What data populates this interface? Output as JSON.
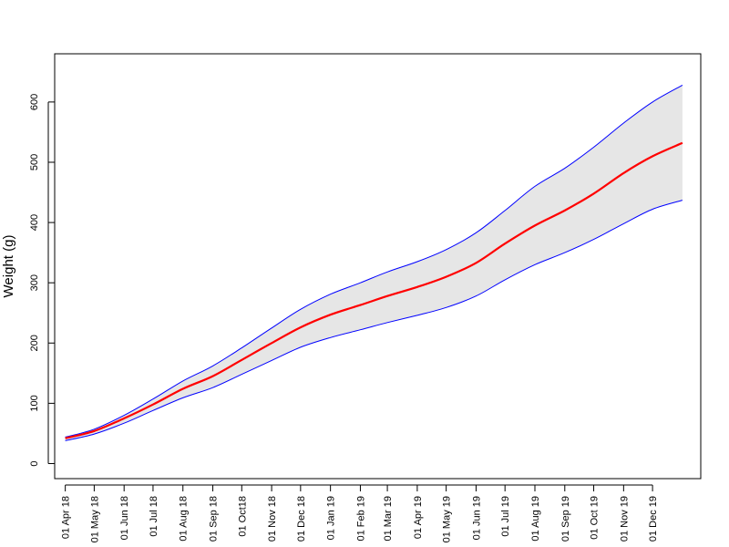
{
  "chart_data": {
    "type": "line",
    "title": "",
    "xlabel": "",
    "ylabel": "Weight (g)",
    "grid": false,
    "legend": "none",
    "ylim": [
      -25,
      680
    ],
    "xlim": [
      "2018-03-21",
      "2020-01-20"
    ],
    "x_ticks": [
      {
        "date": "2018-04-01",
        "label": "01 Apr 18"
      },
      {
        "date": "2018-05-01",
        "label": "01 May 18"
      },
      {
        "date": "2018-06-01",
        "label": "01 Jun 18"
      },
      {
        "date": "2018-07-01",
        "label": "01 Jul 18"
      },
      {
        "date": "2018-08-01",
        "label": "01 Aug 18"
      },
      {
        "date": "2018-09-01",
        "label": "01 Sep 18"
      },
      {
        "date": "2018-10-01",
        "label": "01 Oct18"
      },
      {
        "date": "2018-11-01",
        "label": "01 Nov 18"
      },
      {
        "date": "2018-12-01",
        "label": "01 Dec 18"
      },
      {
        "date": "2019-01-01",
        "label": "01 Jan 19"
      },
      {
        "date": "2019-02-01",
        "label": "01 Feb 19"
      },
      {
        "date": "2019-03-01",
        "label": "01 Mar 19"
      },
      {
        "date": "2019-04-01",
        "label": "01 Apr 19"
      },
      {
        "date": "2019-05-01",
        "label": "01 May 19"
      },
      {
        "date": "2019-06-01",
        "label": "01 Jun 19"
      },
      {
        "date": "2019-07-01",
        "label": "01 Jul 19"
      },
      {
        "date": "2019-08-01",
        "label": "01 Aug 19"
      },
      {
        "date": "2019-09-01",
        "label": "01 Sep 19"
      },
      {
        "date": "2019-10-01",
        "label": "01 Oct 19"
      },
      {
        "date": "2019-11-01",
        "label": "01 Nov 19"
      },
      {
        "date": "2019-12-01",
        "label": "01 Dec 19"
      }
    ],
    "y_ticks": [
      0,
      100,
      200,
      300,
      400,
      500,
      600
    ],
    "x": [
      "2018-04-01",
      "2018-05-01",
      "2018-06-01",
      "2018-07-01",
      "2018-08-01",
      "2018-09-01",
      "2018-10-01",
      "2018-11-01",
      "2018-12-01",
      "2019-01-01",
      "2019-02-01",
      "2019-03-01",
      "2019-04-01",
      "2019-05-01",
      "2019-06-01",
      "2019-07-01",
      "2019-08-01",
      "2019-09-01",
      "2019-10-01",
      "2019-11-01",
      "2019-12-01",
      "2020-01-01"
    ],
    "series": [
      {
        "role": "upper",
        "color": "#0000ff",
        "values": [
          44,
          57,
          80,
          107,
          137,
          162,
          192,
          225,
          256,
          281,
          300,
          318,
          335,
          355,
          383,
          420,
          460,
          490,
          525,
          565,
          600,
          628
        ]
      },
      {
        "role": "center",
        "color": "#ff0000",
        "values": [
          42,
          54,
          75,
          98,
          124,
          145,
          172,
          200,
          226,
          247,
          263,
          278,
          293,
          310,
          333,
          365,
          395,
          420,
          448,
          482,
          510,
          532
        ]
      },
      {
        "role": "lower",
        "color": "#0000ff",
        "values": [
          38,
          49,
          67,
          88,
          109,
          126,
          148,
          171,
          193,
          209,
          222,
          234,
          246,
          259,
          278,
          305,
          330,
          350,
          372,
          398,
          422,
          437
        ]
      }
    ],
    "band_fill": "#e6e6e6"
  }
}
